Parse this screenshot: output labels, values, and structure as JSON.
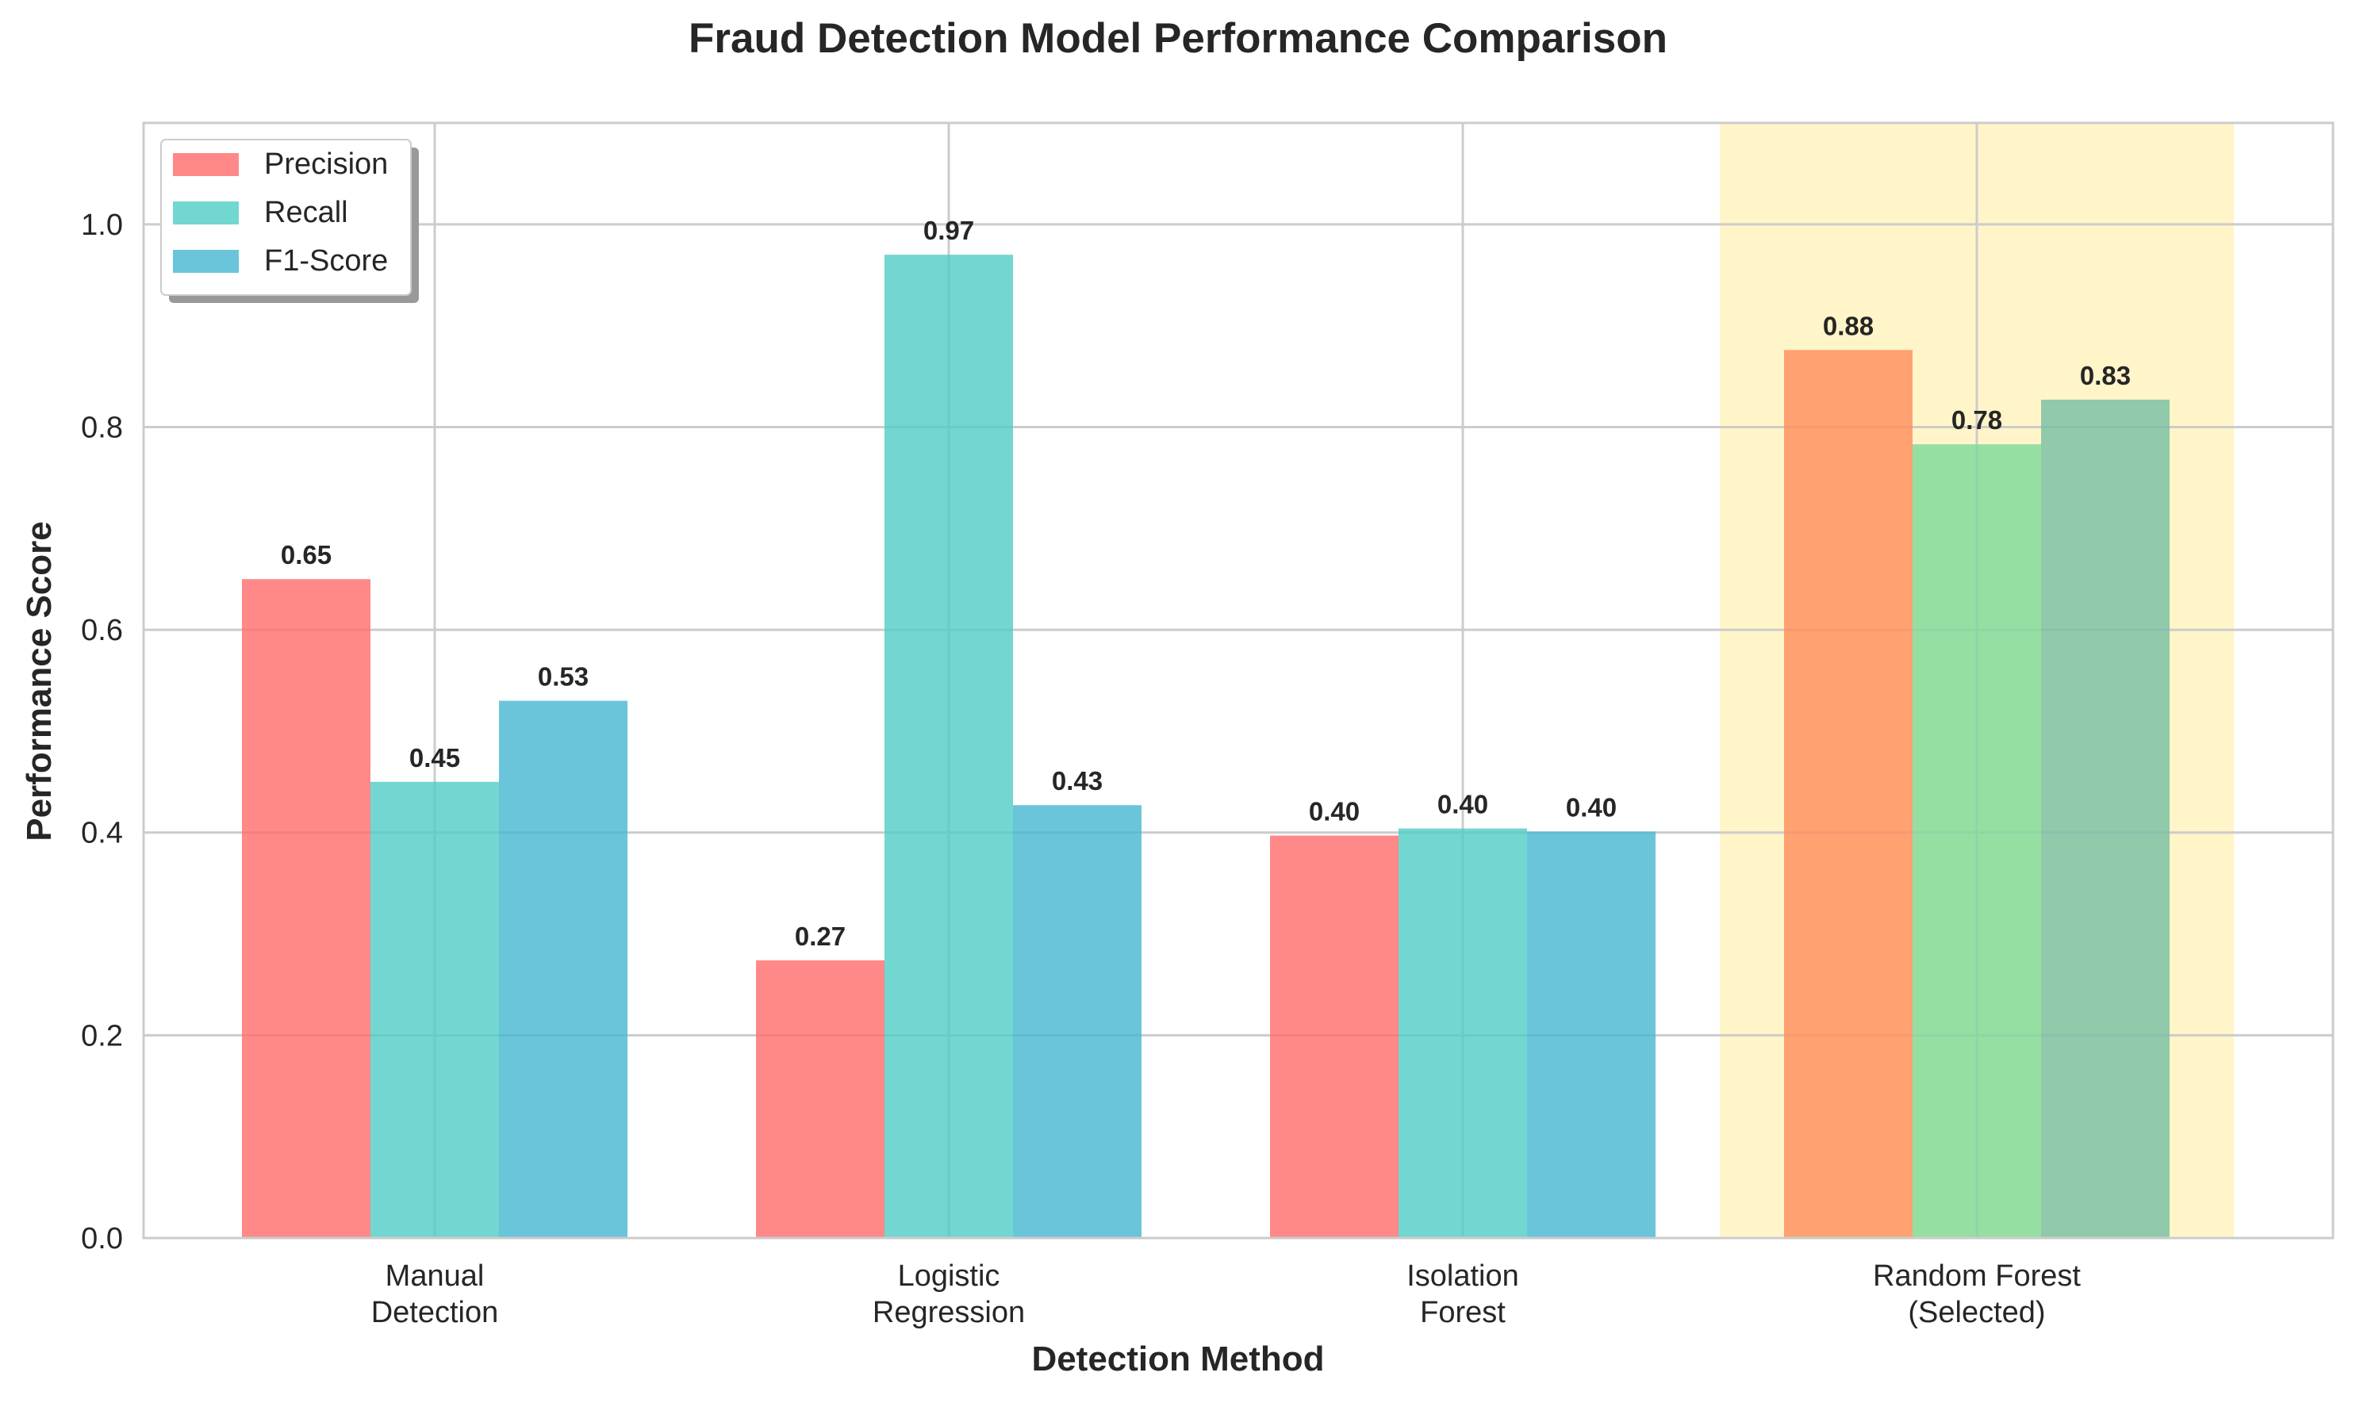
{
  "chart_data": {
    "type": "bar",
    "title": "Fraud Detection Model Performance Comparison",
    "xlabel": "Detection Method",
    "ylabel": "Performance Score",
    "ylim": [
      0,
      1.1
    ],
    "yticks": [
      "0.0",
      "0.2",
      "0.4",
      "0.6",
      "0.8",
      "1.0"
    ],
    "categories": [
      "Manual\nDetection",
      "Logistic\nRegression",
      "Isolation\nForest",
      "Random Forest\n(Selected)"
    ],
    "series": [
      {
        "name": "Precision",
        "color": "#FF6B6B",
        "values": [
          0.65,
          0.274,
          0.397,
          0.876
        ],
        "labels": [
          "0.65",
          "0.27",
          "0.40",
          "0.88"
        ]
      },
      {
        "name": "Recall",
        "color": "#4ECDC4",
        "values": [
          0.45,
          0.97,
          0.404,
          0.783
        ],
        "labels": [
          "0.45",
          "0.97",
          "0.40",
          "0.78"
        ]
      },
      {
        "name": "F1-Score",
        "color": "#45B7D1",
        "values": [
          0.53,
          0.427,
          0.401,
          0.827
        ],
        "labels": [
          "0.53",
          "0.43",
          "0.40",
          "0.83"
        ]
      }
    ],
    "highlight": {
      "category_index": 3,
      "band_color": "#FFF5C9",
      "bar_colors": [
        "#FF8C5A",
        "#7DD89A",
        "#76BEA4"
      ]
    },
    "grid": true,
    "legend_position": "upper-left"
  }
}
